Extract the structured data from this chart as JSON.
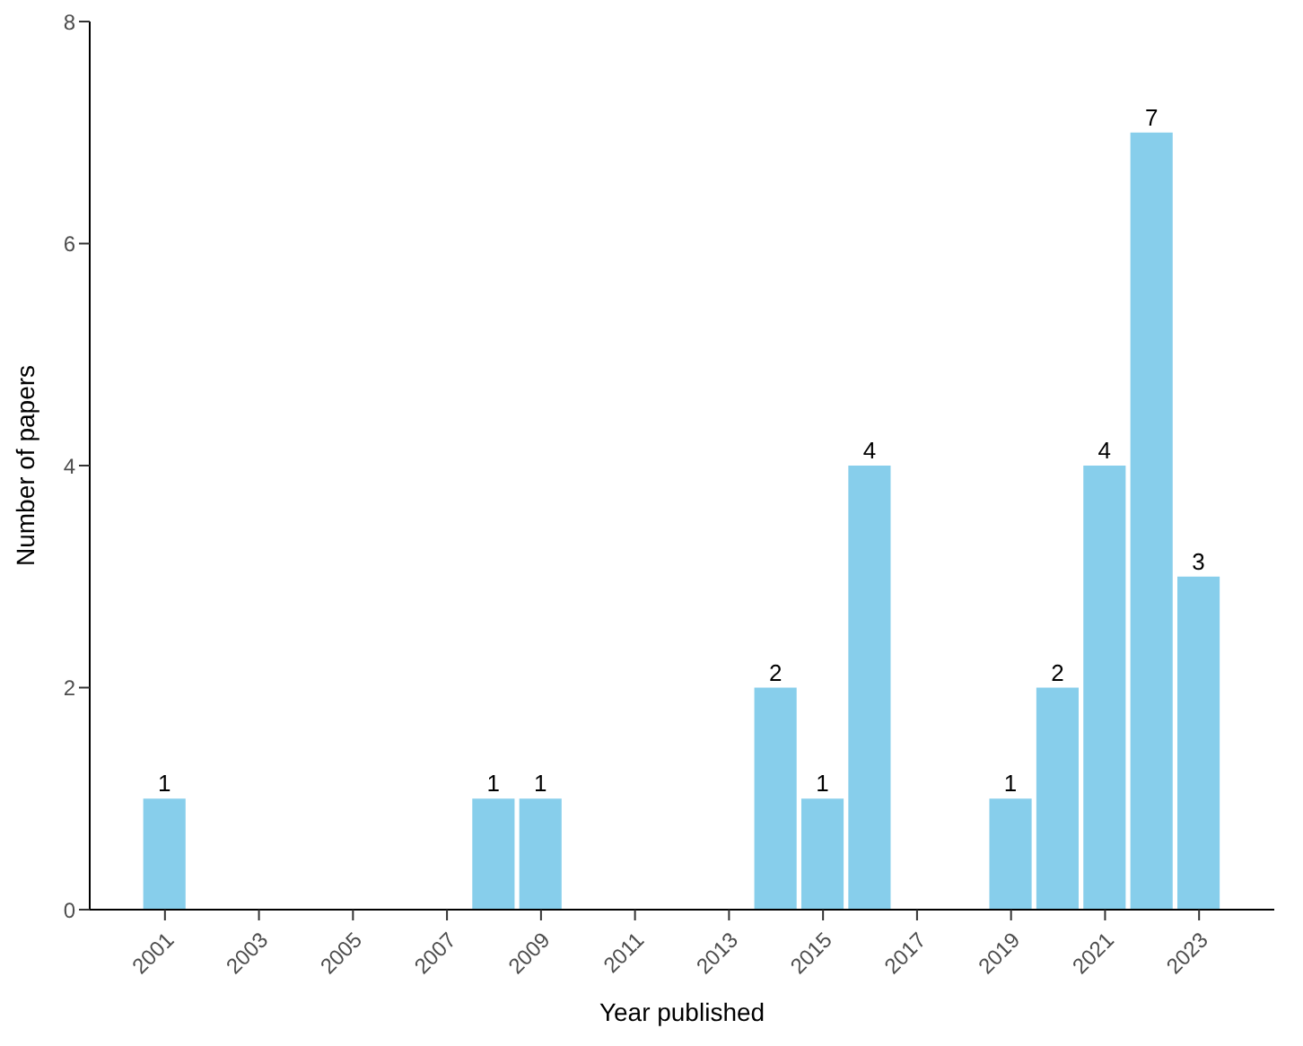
{
  "chart_data": {
    "type": "bar",
    "xlabel": "Year published",
    "ylabel": "Number of papers",
    "x": [
      2001,
      2008,
      2009,
      2014,
      2015,
      2016,
      2019,
      2020,
      2021,
      2022,
      2023
    ],
    "values": [
      1,
      1,
      1,
      2,
      1,
      4,
      1,
      2,
      4,
      7,
      3
    ],
    "color": "#87ceeb",
    "xlim": [
      1999.4,
      2024.6
    ],
    "xticks": [
      2001,
      2003,
      2005,
      2007,
      2009,
      2011,
      2013,
      2015,
      2017,
      2019,
      2021,
      2023
    ],
    "ylim": [
      0,
      8
    ],
    "yticks": [
      0,
      2,
      4,
      6,
      8
    ],
    "grid": false,
    "data_labels": true
  }
}
